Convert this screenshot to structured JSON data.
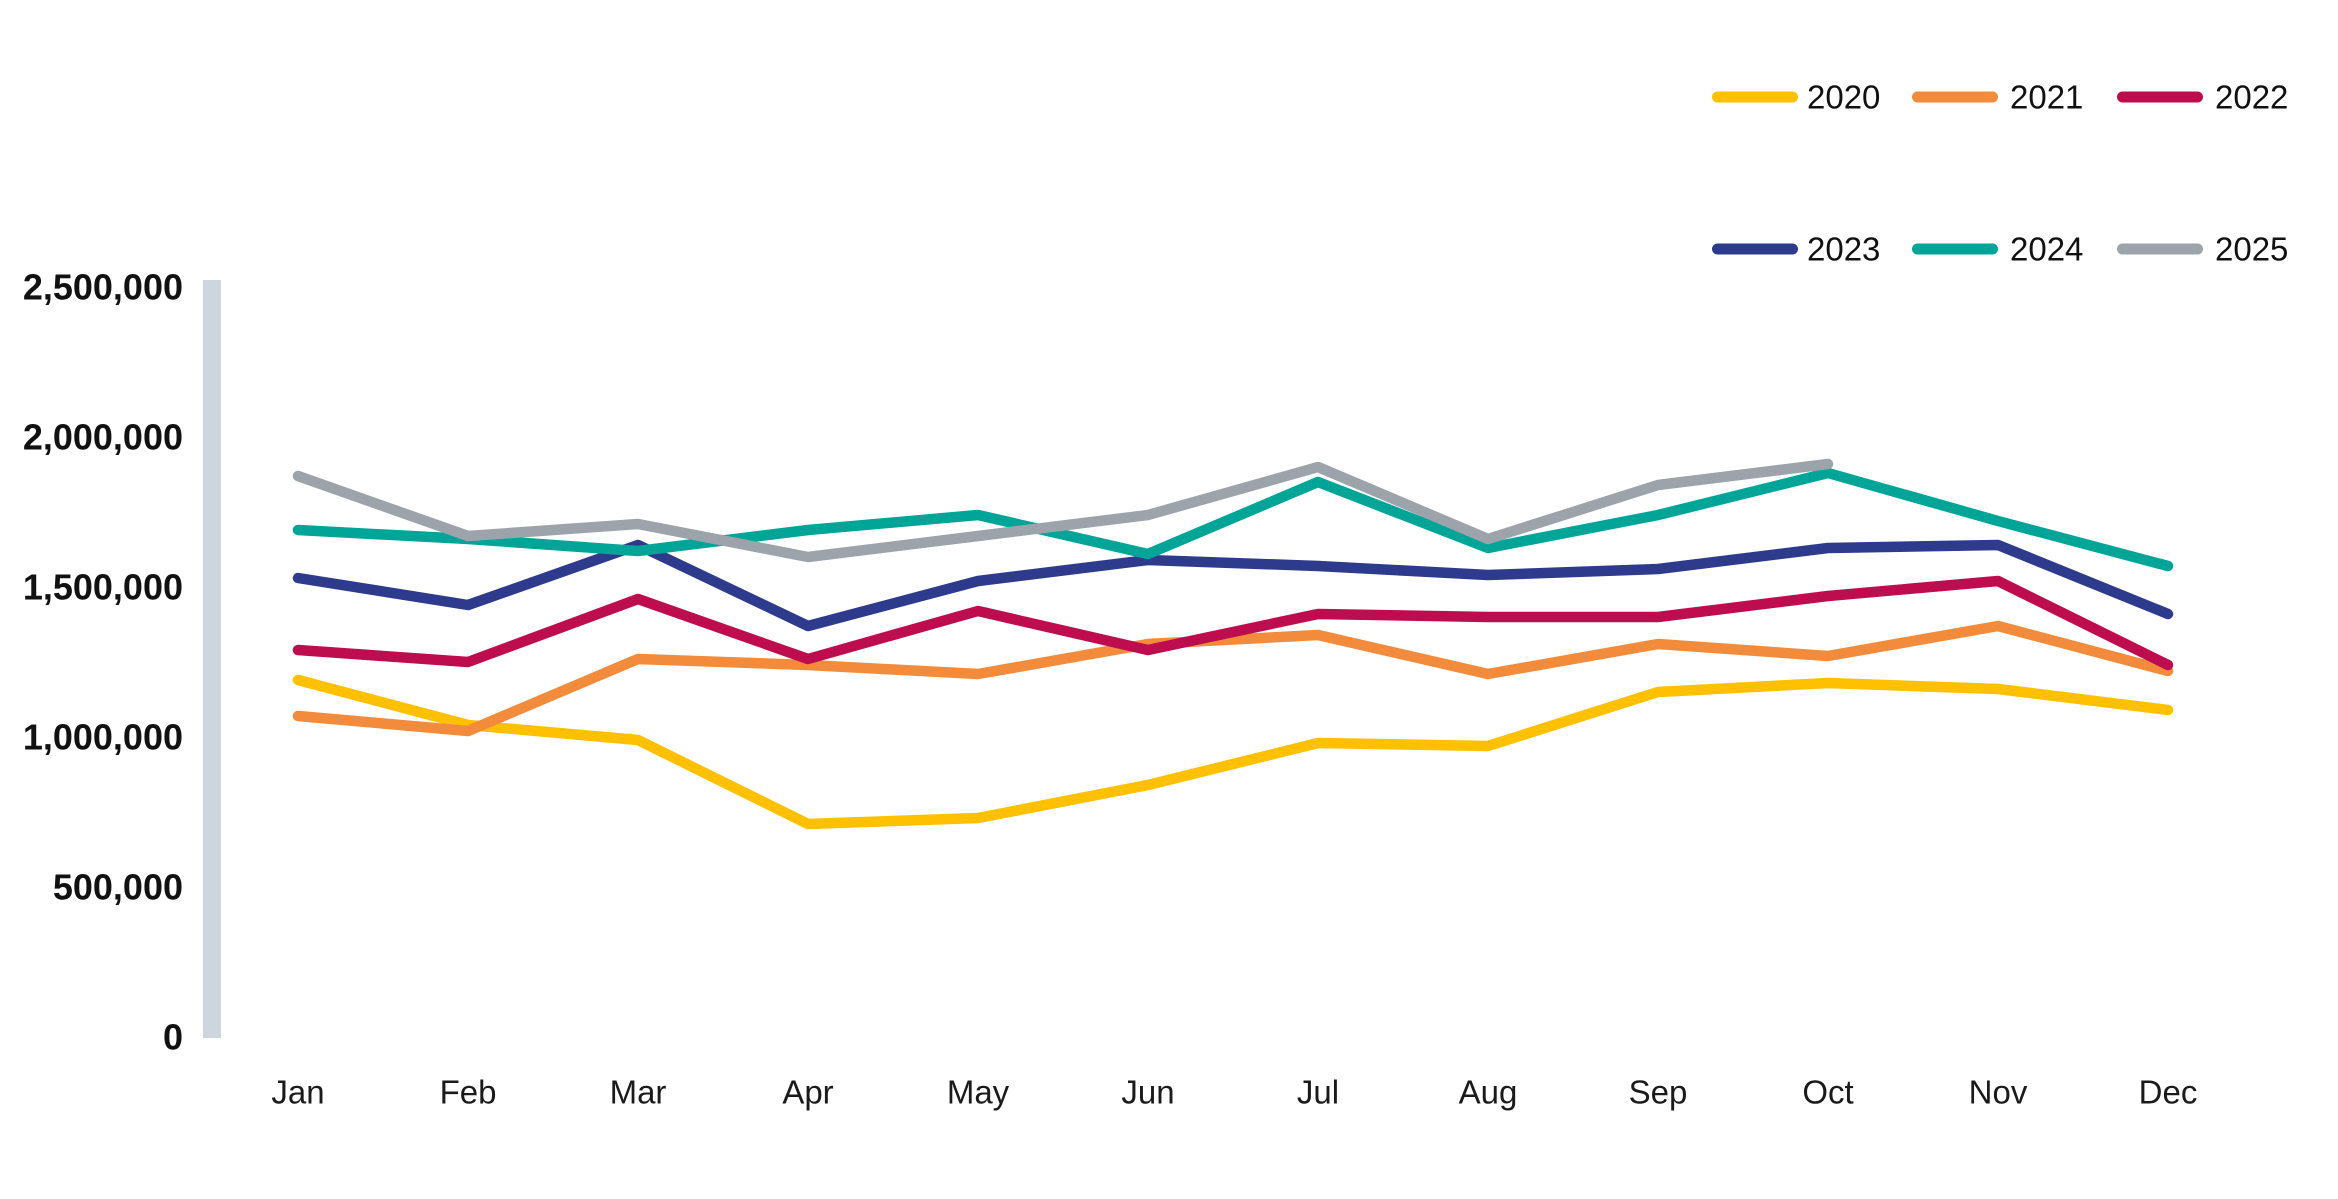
{
  "chart_data": {
    "type": "line",
    "title": "",
    "xlabel": "",
    "ylabel": "",
    "grid": false,
    "legend_position": "top-right",
    "ylim": [
      0,
      2500000
    ],
    "y_ticks": [
      "2,500,000",
      "2,000,000",
      "1,500,000",
      "1,000,000",
      "500,000",
      "0"
    ],
    "categories": [
      "Jan",
      "Feb",
      "Mar",
      "Apr",
      "May",
      "Jun",
      "Jul",
      "Aug",
      "Sep",
      "Oct",
      "Nov",
      "Dec"
    ],
    "series": [
      {
        "name": "2020",
        "color": "#FFC000",
        "values": [
          1190000,
          1040000,
          990000,
          710000,
          730000,
          840000,
          980000,
          970000,
          1150000,
          1180000,
          1160000,
          1090000
        ]
      },
      {
        "name": "2021",
        "color": "#F28B3B",
        "values": [
          1070000,
          1020000,
          1260000,
          1240000,
          1210000,
          1310000,
          1340000,
          1210000,
          1310000,
          1270000,
          1370000,
          1220000
        ]
      },
      {
        "name": "2022",
        "color": "#BE0D4E",
        "values": [
          1290000,
          1250000,
          1460000,
          1260000,
          1420000,
          1290000,
          1410000,
          1400000,
          1400000,
          1470000,
          1520000,
          1240000
        ]
      },
      {
        "name": "2023",
        "color": "#2E3A8C",
        "values": [
          1530000,
          1440000,
          1640000,
          1370000,
          1520000,
          1590000,
          1570000,
          1540000,
          1560000,
          1630000,
          1640000,
          1410000
        ]
      },
      {
        "name": "2024",
        "color": "#00A598",
        "values": [
          1690000,
          1660000,
          1620000,
          1690000,
          1740000,
          1610000,
          1850000,
          1630000,
          1740000,
          1880000,
          1720000,
          1570000
        ]
      },
      {
        "name": "2025",
        "color": "#9DA3AB",
        "values": [
          1870000,
          1670000,
          1710000,
          1600000,
          1670000,
          1740000,
          1900000,
          1660000,
          1840000,
          1910000,
          null,
          null
        ]
      }
    ]
  },
  "colors": {
    "axis_bar": "#CED6DD",
    "background": "#FFFFFF",
    "text": "#111111"
  }
}
